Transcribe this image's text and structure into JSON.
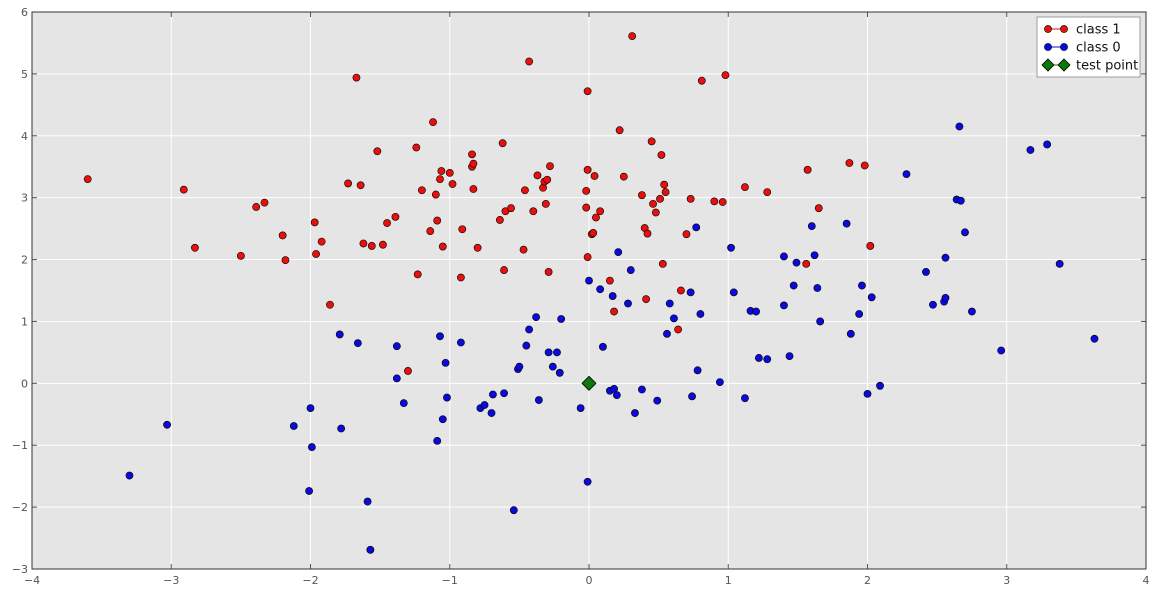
{
  "chart_data": {
    "type": "scatter",
    "title": "",
    "xlabel": "",
    "ylabel": "",
    "xlim": [
      -4,
      4
    ],
    "ylim": [
      -3,
      6
    ],
    "x_ticks": [
      -4,
      -3,
      -2,
      -1,
      0,
      1,
      2,
      3,
      4
    ],
    "y_ticks": [
      -3,
      -2,
      -1,
      0,
      1,
      2,
      3,
      4,
      5,
      6
    ],
    "grid": true,
    "legend_placement": "top-right",
    "colors": {
      "plot_background": "#e5e5e5",
      "grid": "#ffffff",
      "class_1": "#e8100c",
      "class_0": "#0a0adc",
      "test_point": "#0b7a0b"
    },
    "series": [
      {
        "name": "class 1",
        "marker": "circle",
        "points": [
          [
            -3.6,
            3.3
          ],
          [
            -2.91,
            3.13
          ],
          [
            -2.83,
            2.19
          ],
          [
            -2.5,
            2.06
          ],
          [
            -2.39,
            2.85
          ],
          [
            -2.33,
            2.92
          ],
          [
            -2.2,
            2.39
          ],
          [
            -2.18,
            1.99
          ],
          [
            -1.97,
            2.6
          ],
          [
            -1.96,
            2.09
          ],
          [
            -1.92,
            2.29
          ],
          [
            -1.86,
            1.27
          ],
          [
            -1.73,
            3.23
          ],
          [
            -1.67,
            4.94
          ],
          [
            -1.64,
            3.2
          ],
          [
            -1.62,
            2.26
          ],
          [
            -1.56,
            2.22
          ],
          [
            -1.52,
            3.75
          ],
          [
            -1.48,
            2.24
          ],
          [
            -1.45,
            2.59
          ],
          [
            -1.39,
            2.69
          ],
          [
            -1.3,
            0.2
          ],
          [
            -1.24,
            3.81
          ],
          [
            -1.23,
            1.76
          ],
          [
            -1.2,
            3.12
          ],
          [
            -1.14,
            2.46
          ],
          [
            -1.12,
            4.22
          ],
          [
            -1.1,
            3.05
          ],
          [
            -1.09,
            2.63
          ],
          [
            -1.07,
            3.3
          ],
          [
            -1.06,
            3.43
          ],
          [
            -1.05,
            2.21
          ],
          [
            -1.0,
            3.4
          ],
          [
            -0.98,
            3.22
          ],
          [
            -0.92,
            1.71
          ],
          [
            -0.91,
            2.49
          ],
          [
            -0.84,
            3.5
          ],
          [
            -0.84,
            3.7
          ],
          [
            -0.83,
            3.14
          ],
          [
            -0.83,
            3.55
          ],
          [
            -0.8,
            2.19
          ],
          [
            -0.64,
            2.64
          ],
          [
            -0.62,
            3.88
          ],
          [
            -0.61,
            1.83
          ],
          [
            -0.6,
            2.78
          ],
          [
            -0.56,
            2.83
          ],
          [
            -0.47,
            2.16
          ],
          [
            -0.46,
            3.12
          ],
          [
            -0.43,
            5.2
          ],
          [
            -0.4,
            2.78
          ],
          [
            -0.37,
            3.36
          ],
          [
            -0.33,
            3.16
          ],
          [
            -0.32,
            3.26
          ],
          [
            -0.31,
            2.9
          ],
          [
            -0.3,
            3.29
          ],
          [
            -0.29,
            1.8
          ],
          [
            -0.28,
            3.51
          ],
          [
            -0.02,
            3.11
          ],
          [
            -0.02,
            2.84
          ],
          [
            -0.01,
            4.72
          ],
          [
            -0.01,
            2.04
          ],
          [
            -0.01,
            3.45
          ],
          [
            0.02,
            2.41
          ],
          [
            0.03,
            2.43
          ],
          [
            0.04,
            3.35
          ],
          [
            0.05,
            2.68
          ],
          [
            0.08,
            2.78
          ],
          [
            0.15,
            1.66
          ],
          [
            0.18,
            1.16
          ],
          [
            0.22,
            4.09
          ],
          [
            0.25,
            3.34
          ],
          [
            0.31,
            5.61
          ],
          [
            0.38,
            3.04
          ],
          [
            0.4,
            2.51
          ],
          [
            0.41,
            1.36
          ],
          [
            0.42,
            2.42
          ],
          [
            0.45,
            3.91
          ],
          [
            0.46,
            2.9
          ],
          [
            0.48,
            2.76
          ],
          [
            0.51,
            2.98
          ],
          [
            0.52,
            3.69
          ],
          [
            0.53,
            1.93
          ],
          [
            0.54,
            3.21
          ],
          [
            0.55,
            3.09
          ],
          [
            0.64,
            0.87
          ],
          [
            0.66,
            1.5
          ],
          [
            0.7,
            2.41
          ],
          [
            0.73,
            2.98
          ],
          [
            0.81,
            4.89
          ],
          [
            0.9,
            2.94
          ],
          [
            0.96,
            2.93
          ],
          [
            0.98,
            4.98
          ],
          [
            1.12,
            3.17
          ],
          [
            1.28,
            3.09
          ],
          [
            1.56,
            1.93
          ],
          [
            1.57,
            3.45
          ],
          [
            1.65,
            2.83
          ],
          [
            1.87,
            3.56
          ],
          [
            1.98,
            3.52
          ],
          [
            2.02,
            2.22
          ]
        ]
      },
      {
        "name": "class 0",
        "marker": "circle",
        "points": [
          [
            -3.3,
            -1.49
          ],
          [
            -3.03,
            -0.67
          ],
          [
            -2.12,
            -0.69
          ],
          [
            -2.01,
            -1.74
          ],
          [
            -2.0,
            -0.4
          ],
          [
            -1.99,
            -1.03
          ],
          [
            -1.79,
            0.79
          ],
          [
            -1.78,
            -0.73
          ],
          [
            -1.66,
            0.65
          ],
          [
            -1.59,
            -1.91
          ],
          [
            -1.57,
            -2.69
          ],
          [
            -1.38,
            0.6
          ],
          [
            -1.38,
            0.08
          ],
          [
            -1.33,
            -0.32
          ],
          [
            -1.09,
            -0.93
          ],
          [
            -1.07,
            0.76
          ],
          [
            -1.05,
            -0.58
          ],
          [
            -1.03,
            0.33
          ],
          [
            -1.02,
            -0.23
          ],
          [
            -0.92,
            0.66
          ],
          [
            -0.78,
            -0.4
          ],
          [
            -0.75,
            -0.35
          ],
          [
            -0.7,
            -0.48
          ],
          [
            -0.69,
            -0.18
          ],
          [
            -0.61,
            -0.16
          ],
          [
            -0.54,
            -2.05
          ],
          [
            -0.51,
            0.23
          ],
          [
            -0.5,
            0.27
          ],
          [
            -0.45,
            0.61
          ],
          [
            -0.43,
            0.87
          ],
          [
            -0.38,
            1.07
          ],
          [
            -0.36,
            -0.27
          ],
          [
            -0.29,
            0.5
          ],
          [
            -0.26,
            0.27
          ],
          [
            -0.23,
            0.5
          ],
          [
            -0.21,
            0.17
          ],
          [
            -0.2,
            1.04
          ],
          [
            -0.06,
            -0.4
          ],
          [
            -0.01,
            -1.59
          ],
          [
            0.0,
            1.66
          ],
          [
            0.08,
            1.52
          ],
          [
            0.1,
            0.59
          ],
          [
            0.15,
            -0.12
          ],
          [
            0.17,
            1.41
          ],
          [
            0.18,
            -0.09
          ],
          [
            0.2,
            -0.19
          ],
          [
            0.21,
            2.12
          ],
          [
            0.28,
            1.29
          ],
          [
            0.3,
            1.83
          ],
          [
            0.33,
            -0.48
          ],
          [
            0.38,
            -0.1
          ],
          [
            0.49,
            -0.28
          ],
          [
            0.56,
            0.8
          ],
          [
            0.58,
            1.29
          ],
          [
            0.61,
            1.05
          ],
          [
            0.73,
            1.47
          ],
          [
            0.74,
            -0.21
          ],
          [
            0.77,
            2.52
          ],
          [
            0.78,
            0.21
          ],
          [
            0.8,
            1.12
          ],
          [
            0.94,
            0.02
          ],
          [
            1.02,
            2.19
          ],
          [
            1.04,
            1.47
          ],
          [
            1.12,
            -0.24
          ],
          [
            1.16,
            1.17
          ],
          [
            1.2,
            1.16
          ],
          [
            1.22,
            0.41
          ],
          [
            1.28,
            0.39
          ],
          [
            1.4,
            2.05
          ],
          [
            1.4,
            1.26
          ],
          [
            1.44,
            0.44
          ],
          [
            1.47,
            1.58
          ],
          [
            1.49,
            1.95
          ],
          [
            1.6,
            2.54
          ],
          [
            1.62,
            2.07
          ],
          [
            1.64,
            1.54
          ],
          [
            1.66,
            1.0
          ],
          [
            1.85,
            2.58
          ],
          [
            1.88,
            0.8
          ],
          [
            1.94,
            1.12
          ],
          [
            1.96,
            1.58
          ],
          [
            2.0,
            -0.17
          ],
          [
            2.03,
            1.39
          ],
          [
            2.09,
            -0.04
          ],
          [
            2.28,
            3.38
          ],
          [
            2.42,
            1.8
          ],
          [
            2.47,
            1.27
          ],
          [
            2.55,
            1.32
          ],
          [
            2.56,
            1.38
          ],
          [
            2.56,
            2.03
          ],
          [
            2.64,
            2.97
          ],
          [
            2.66,
            4.15
          ],
          [
            2.67,
            2.95
          ],
          [
            2.7,
            2.44
          ],
          [
            2.75,
            1.16
          ],
          [
            2.96,
            0.53
          ],
          [
            3.17,
            3.77
          ],
          [
            3.29,
            3.86
          ],
          [
            3.38,
            1.93
          ],
          [
            3.63,
            0.72
          ]
        ]
      },
      {
        "name": "test point",
        "marker": "diamond",
        "points": [
          [
            0,
            0
          ]
        ]
      }
    ]
  }
}
